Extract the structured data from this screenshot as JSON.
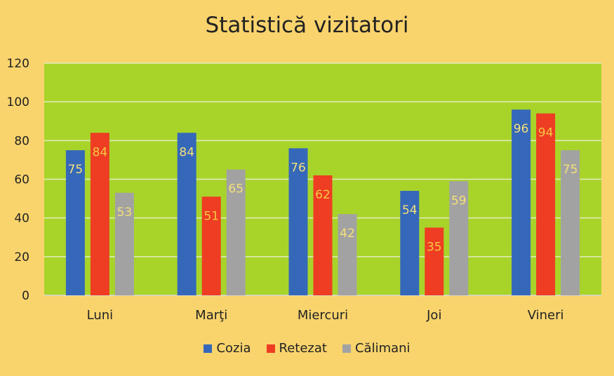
{
  "chart_data": {
    "type": "bar",
    "title": "Statistică vizitatori",
    "xlabel": "",
    "ylabel": "",
    "ylim": [
      0,
      120
    ],
    "yticks": [
      0,
      20,
      40,
      60,
      80,
      100,
      120
    ],
    "grid": true,
    "legend_position": "bottom",
    "categories": [
      "Luni",
      "Marţi",
      "Miercuri",
      "Joi",
      "Vineri"
    ],
    "series": [
      {
        "name": "Cozia",
        "color": "#3568b9",
        "label_color": "#f4e07a",
        "values": [
          75,
          84,
          76,
          54,
          96
        ]
      },
      {
        "name": "Retezat",
        "color": "#ee3d22",
        "label_color": "#f7c843",
        "values": [
          84,
          51,
          62,
          35,
          94
        ]
      },
      {
        "name": "Călimani",
        "color": "#a2a2a2",
        "label_color": "#f4e07a",
        "values": [
          53,
          65,
          42,
          59,
          75
        ]
      }
    ],
    "plot_background": "#a8d42a",
    "page_background": "#f9d46d"
  }
}
